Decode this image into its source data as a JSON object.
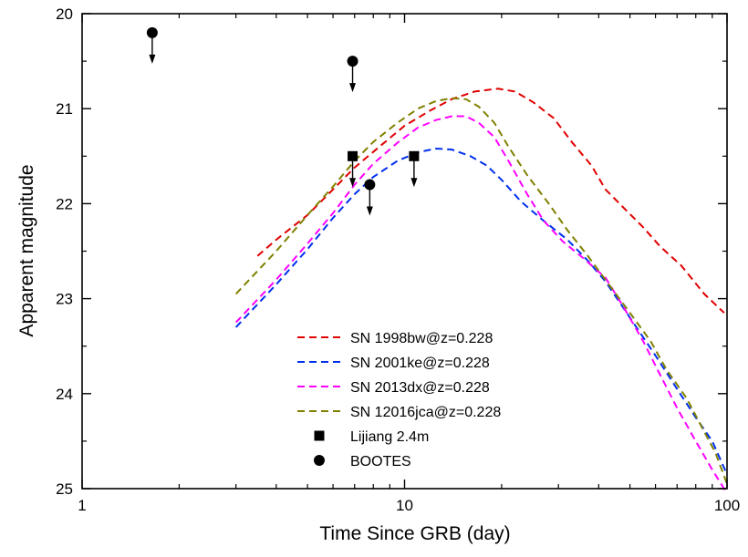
{
  "chart_data": {
    "type": "line",
    "xlabel": "Time Since GRB (day)",
    "ylabel": "Apparent magnitude",
    "xscale": "log",
    "xlim": [
      1,
      100
    ],
    "ylim": [
      25,
      20
    ],
    "y_inverted": true,
    "grid": false,
    "legend_placement": "bottom-center",
    "xticks": [
      {
        "value": 1,
        "label": "1"
      },
      {
        "value": 10,
        "label": "10"
      },
      {
        "value": 100,
        "label": "100"
      }
    ],
    "yticks": [
      {
        "value": 20,
        "label": "20"
      },
      {
        "value": 21,
        "label": "21"
      },
      {
        "value": 22,
        "label": "22"
      },
      {
        "value": 23,
        "label": "23"
      },
      {
        "value": 24,
        "label": "24"
      },
      {
        "value": 25,
        "label": "25"
      }
    ],
    "series": [
      {
        "name": "SN 1998bw@z=0.228",
        "color": "#e00000",
        "style": "dashed",
        "points": [
          [
            3.5,
            22.55
          ],
          [
            4.0,
            22.38
          ],
          [
            5.0,
            22.12
          ],
          [
            6.0,
            21.85
          ],
          [
            7.0,
            21.62
          ],
          [
            8.5,
            21.38
          ],
          [
            10.0,
            21.18
          ],
          [
            12.0,
            21.02
          ],
          [
            14.0,
            20.9
          ],
          [
            16.5,
            20.82
          ],
          [
            19.5,
            20.79
          ],
          [
            22.0,
            20.82
          ],
          [
            25.0,
            20.93
          ],
          [
            29.0,
            21.1
          ],
          [
            33.0,
            21.35
          ],
          [
            38.0,
            21.6
          ],
          [
            42.0,
            21.85
          ],
          [
            48.0,
            22.05
          ],
          [
            55.0,
            22.25
          ],
          [
            62.0,
            22.45
          ],
          [
            72.0,
            22.65
          ],
          [
            85.0,
            22.95
          ],
          [
            98.0,
            23.15
          ]
        ]
      },
      {
        "name": "SN 2001ke@z=0.228",
        "color": "#0030ee",
        "style": "dashed",
        "points": [
          [
            3.0,
            23.3
          ],
          [
            4.0,
            22.85
          ],
          [
            5.0,
            22.48
          ],
          [
            6.0,
            22.15
          ],
          [
            7.0,
            21.9
          ],
          [
            8.0,
            21.72
          ],
          [
            9.5,
            21.55
          ],
          [
            11.0,
            21.46
          ],
          [
            12.5,
            21.42
          ],
          [
            14.0,
            21.43
          ],
          [
            16.0,
            21.5
          ],
          [
            18.0,
            21.6
          ],
          [
            20.0,
            21.75
          ],
          [
            23.0,
            21.98
          ],
          [
            27.0,
            22.18
          ],
          [
            32.0,
            22.38
          ],
          [
            37.0,
            22.6
          ],
          [
            42.0,
            22.82
          ],
          [
            50.0,
            23.2
          ],
          [
            60.0,
            23.6
          ],
          [
            70.0,
            23.95
          ],
          [
            80.0,
            24.25
          ],
          [
            90.0,
            24.5
          ],
          [
            100.0,
            24.85
          ]
        ]
      },
      {
        "name": "SN 2013dx@z=0.228",
        "color": "#ff00ff",
        "style": "dashed",
        "points": [
          [
            3.0,
            23.25
          ],
          [
            4.0,
            22.8
          ],
          [
            5.0,
            22.42
          ],
          [
            6.0,
            22.1
          ],
          [
            7.0,
            21.8
          ],
          [
            8.0,
            21.58
          ],
          [
            9.5,
            21.36
          ],
          [
            11.0,
            21.2
          ],
          [
            12.5,
            21.12
          ],
          [
            14.0,
            21.08
          ],
          [
            15.5,
            21.08
          ],
          [
            17.0,
            21.15
          ],
          [
            19.0,
            21.3
          ],
          [
            21.0,
            21.55
          ],
          [
            24.0,
            21.9
          ],
          [
            27.0,
            22.18
          ],
          [
            31.0,
            22.4
          ],
          [
            36.0,
            22.58
          ],
          [
            42.0,
            22.78
          ],
          [
            48.0,
            23.1
          ],
          [
            55.0,
            23.45
          ],
          [
            62.0,
            23.8
          ],
          [
            70.0,
            24.15
          ],
          [
            80.0,
            24.5
          ],
          [
            90.0,
            24.8
          ],
          [
            100.0,
            25.05
          ]
        ]
      },
      {
        "name": "SN 12016jca@z=0.228",
        "color": "#808000",
        "style": "dashed",
        "points": [
          [
            3.0,
            22.95
          ],
          [
            4.0,
            22.5
          ],
          [
            5.0,
            22.12
          ],
          [
            6.0,
            21.82
          ],
          [
            7.0,
            21.55
          ],
          [
            8.0,
            21.35
          ],
          [
            9.5,
            21.15
          ],
          [
            11.0,
            21.0
          ],
          [
            12.5,
            20.92
          ],
          [
            14.0,
            20.89
          ],
          [
            15.5,
            20.9
          ],
          [
            17.0,
            20.98
          ],
          [
            19.0,
            21.15
          ],
          [
            21.0,
            21.4
          ],
          [
            24.0,
            21.7
          ],
          [
            28.0,
            22.0
          ],
          [
            32.0,
            22.28
          ],
          [
            37.0,
            22.55
          ],
          [
            43.0,
            22.85
          ],
          [
            50.0,
            23.15
          ],
          [
            58.0,
            23.45
          ],
          [
            65.0,
            23.75
          ],
          [
            75.0,
            24.05
          ],
          [
            85.0,
            24.4
          ],
          [
            92.0,
            24.62
          ],
          [
            100.0,
            24.95
          ]
        ]
      }
    ],
    "markers": [
      {
        "name": "Lijiang 2.4m",
        "shape": "square",
        "color": "#000000",
        "upper_limit": true,
        "points": [
          [
            6.9,
            21.5
          ],
          [
            10.7,
            21.5
          ]
        ]
      },
      {
        "name": "BOOTES",
        "shape": "circle",
        "color": "#000000",
        "upper_limit": true,
        "points": [
          [
            1.65,
            20.2
          ],
          [
            6.9,
            20.5
          ],
          [
            7.8,
            21.8
          ]
        ]
      }
    ]
  }
}
